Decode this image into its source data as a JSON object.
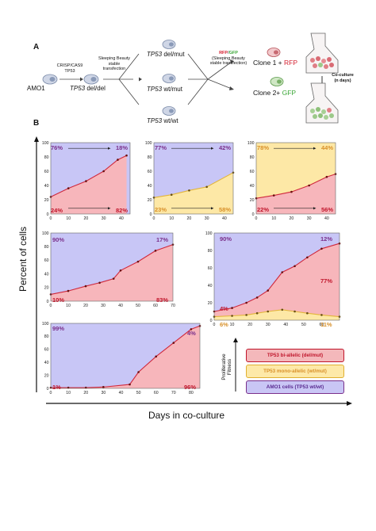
{
  "panelA": {
    "letter": "A",
    "amo1": "AMO1",
    "crispr_line1": "CRISP/CAS9",
    "crispr_line2": "TP53",
    "tp53": "TP53",
    "deldel_suffix": "del/del",
    "sb_line1": "Sleeping Beauty",
    "sb_line2": "stable",
    "sb_line3": "transfection",
    "delmut_suffix": "del/mut",
    "wtmut_suffix": "wt/mut",
    "wtwt_suffix": "wt/wt",
    "rfp": "RFP",
    "slash": "/",
    "gfp": "GFP",
    "sb2_line1": "(Sleeping Beauty",
    "sb2_line2": "stable transfection)",
    "clone1_text": "Clone 1 + ",
    "clone1_color": "RFP",
    "clone2_text": "Clone 2+ ",
    "clone2_color": "GFP",
    "coculture_line1": "Co-culture",
    "coculture_line2": "(n days)"
  },
  "panelB": {
    "letter": "B",
    "ylabel": "Percent of cells",
    "xlabel": "Days in co-culture"
  },
  "legend": {
    "axis_label_line1": "Proliferative",
    "axis_label_line2": "Fitness",
    "items": [
      {
        "label": "TP53 bi-allelic (del/mut)",
        "fill": "#f4b8bb",
        "border": "#c0152b",
        "text": "#c0152b"
      },
      {
        "label": "TP53 mono-allelic (wt/mut)",
        "fill": "#fde9a8",
        "border": "#e0b030",
        "text": "#d8902a"
      },
      {
        "label": "AMO1 cells (TP53 wt/wt)",
        "fill": "#c9c6f5",
        "border": "#7a2f8a",
        "text": "#5a2a90"
      }
    ]
  },
  "colors": {
    "red_fill": "#f7b6bb",
    "yellow_fill": "#fde8a6",
    "purple_fill": "#c8c6f6",
    "red_line": "#d0283c",
    "yellow_line": "#e3b53a",
    "dark_red": "#c0152b",
    "purple_text": "#7a2f8a",
    "orange_text": "#d8902a"
  },
  "charts_text": {
    "c1": {
      "tl": "76%",
      "tr": "18%",
      "bl": "24%",
      "br": "82%"
    },
    "c2": {
      "tl": "77%",
      "tr": "42%",
      "bl": "23%",
      "br": "58%"
    },
    "c3": {
      "tl": "78%",
      "tr": "44%",
      "bl": "22%",
      "br": "56%"
    },
    "c4": {
      "tl": "90%",
      "tr": "17%",
      "bl": "10%",
      "br": "83%"
    },
    "c5": {
      "tl": "90%",
      "tr": "12%",
      "mr": "77%",
      "l1": "4%",
      "l2": "6%",
      "br": "11%"
    },
    "c6": {
      "tl": "99%",
      "tr": "4%",
      "bl": "1%",
      "br": "96%"
    }
  },
  "chart_data": [
    {
      "type": "area",
      "id": "c1",
      "xlim": [
        0,
        45
      ],
      "ylim": [
        0,
        100
      ],
      "xticks": [
        0,
        10,
        20,
        30,
        40
      ],
      "yticks": [
        0,
        20,
        40,
        60,
        80,
        100
      ],
      "series": [
        {
          "name": "TP53 bi-allelic (del/mut)",
          "x": [
            0,
            10,
            20,
            30,
            38,
            43
          ],
          "y": [
            24,
            36,
            46,
            60,
            76,
            82
          ]
        }
      ]
    },
    {
      "type": "area",
      "id": "c2",
      "xlim": [
        0,
        45
      ],
      "ylim": [
        0,
        100
      ],
      "xticks": [
        0,
        10,
        20,
        30,
        40
      ],
      "yticks": [
        0,
        20,
        40,
        60,
        80,
        100
      ],
      "series": [
        {
          "name": "TP53 mono-allelic (wt/mut)",
          "x": [
            0,
            10,
            20,
            30,
            45
          ],
          "y": [
            23,
            27,
            33,
            38,
            58
          ]
        }
      ]
    },
    {
      "type": "area",
      "id": "c3",
      "xlim": [
        0,
        45
      ],
      "ylim": [
        0,
        100
      ],
      "xticks": [
        0,
        10,
        20,
        30,
        40
      ],
      "yticks": [
        0,
        20,
        40,
        60,
        80,
        100
      ],
      "series": [
        {
          "name": "TP53 bi-allelic (del/mut)",
          "x": [
            0,
            10,
            20,
            30,
            40,
            45
          ],
          "y": [
            22,
            26,
            31,
            40,
            52,
            56
          ]
        },
        {
          "name": "TP53 mono-allelic (wt/mut)",
          "x": [
            0,
            10,
            20,
            30,
            40,
            45
          ],
          "y": [
            22,
            26,
            31,
            40,
            52,
            56
          ]
        }
      ]
    },
    {
      "type": "area",
      "id": "c4",
      "xlim": [
        0,
        70
      ],
      "ylim": [
        0,
        100
      ],
      "xticks": [
        0,
        10,
        20,
        30,
        40,
        50,
        60,
        70
      ],
      "yticks": [
        0,
        20,
        40,
        60,
        80,
        100
      ],
      "series": [
        {
          "name": "TP53 bi-allelic (del/mut)",
          "x": [
            0,
            10,
            20,
            28,
            36,
            40,
            50,
            60,
            70
          ],
          "y": [
            10,
            15,
            22,
            27,
            33,
            45,
            58,
            74,
            83
          ]
        }
      ]
    },
    {
      "type": "area",
      "id": "c5",
      "xlim": [
        0,
        70
      ],
      "ylim": [
        0,
        100
      ],
      "xticks": [
        0,
        10,
        20,
        30,
        40,
        50,
        60
      ],
      "yticks": [
        0,
        20,
        40,
        60,
        80,
        100
      ],
      "series": [
        {
          "name": "TP53 bi-allelic (del/mut)",
          "x": [
            0,
            10,
            18,
            24,
            30,
            38,
            45,
            52,
            60,
            70
          ],
          "y": [
            4,
            5,
            6,
            8,
            10,
            12,
            10,
            8,
            6,
            4
          ]
        },
        {
          "name": "TP53 mono-allelic (wt/mut) upper boundary",
          "x": [
            0,
            10,
            18,
            24,
            30,
            38,
            45,
            52,
            60,
            70
          ],
          "y": [
            10,
            14,
            20,
            26,
            34,
            55,
            62,
            72,
            82,
            88
          ]
        }
      ]
    },
    {
      "type": "area",
      "id": "c6",
      "xlim": [
        0,
        85
      ],
      "ylim": [
        0,
        100
      ],
      "xticks": [
        0,
        10,
        20,
        30,
        40,
        50,
        60,
        70,
        80
      ],
      "yticks": [
        0,
        20,
        40,
        60,
        80,
        100
      ],
      "series": [
        {
          "name": "TP53 bi-allelic (del/mut)",
          "x": [
            0,
            10,
            20,
            30,
            45,
            50,
            60,
            70,
            80,
            85
          ],
          "y": [
            1,
            1,
            1,
            2,
            6,
            25,
            49,
            70,
            91,
            96
          ]
        }
      ]
    }
  ]
}
